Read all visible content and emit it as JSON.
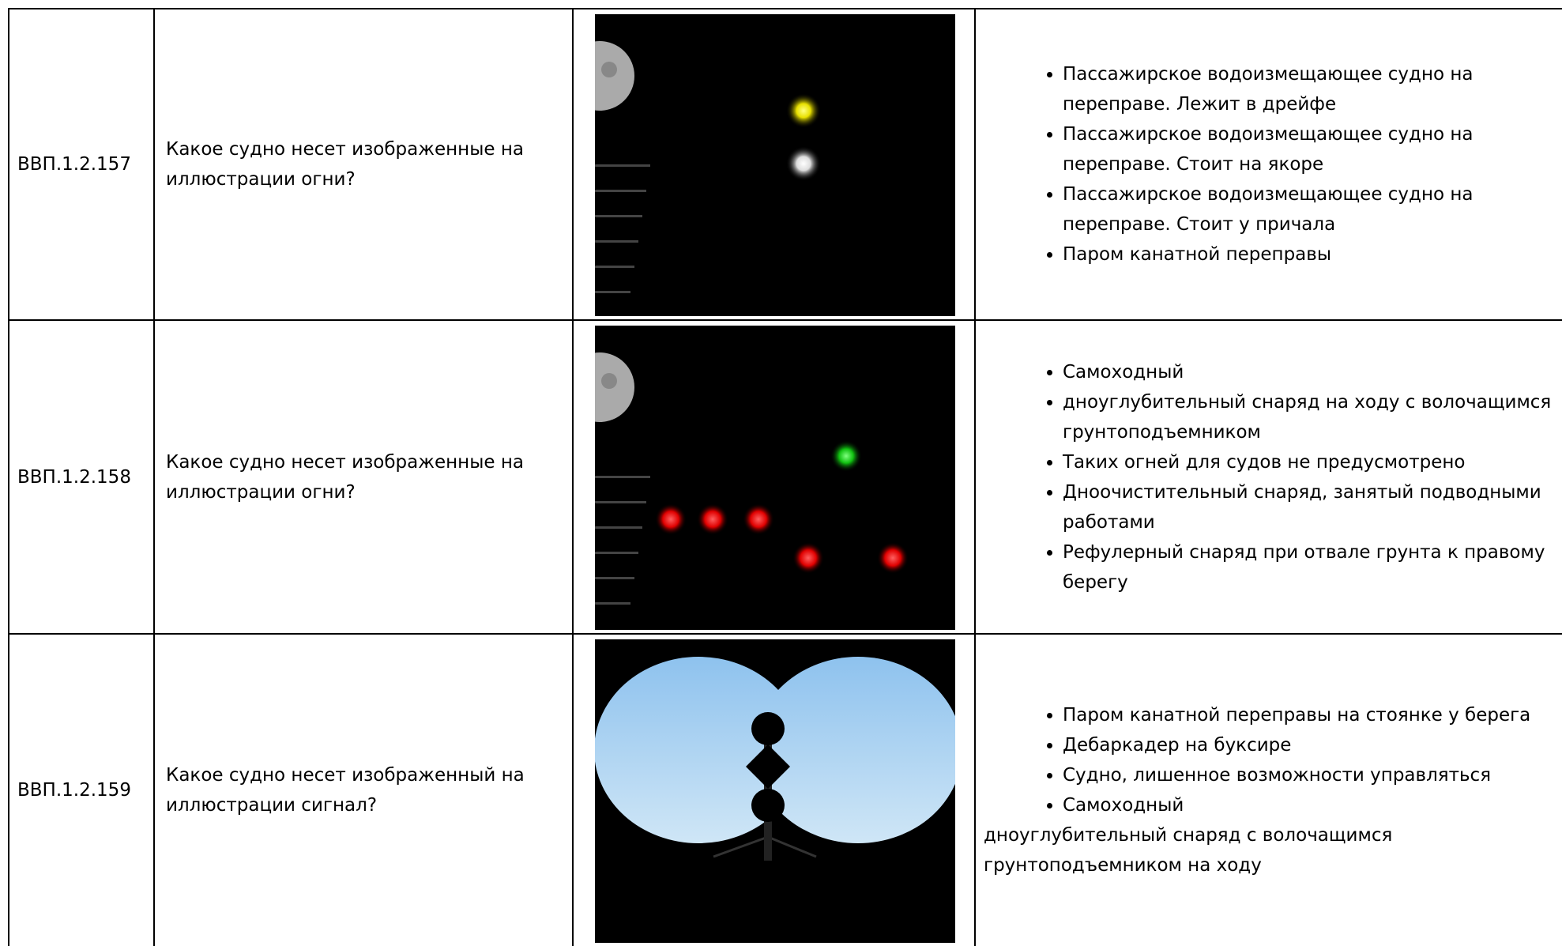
{
  "table": {
    "rows": [
      {
        "id": "ВВП.1.2.157",
        "question": "Какое судно несет изображенные на иллюстрации огни?",
        "answers": [
          "Пассажирское водоизмещающее судно на переправе. Лежит в дрейфе",
          "Пассажирское водоизмещающее судно на переправе. Стоит на якоре",
          "Пассажирское водоизмещающее судно на переправе. Стоит у причала",
          "Паром канатной переправы"
        ]
      },
      {
        "id": "ВВП.1.2.158",
        "question": "Какое судно несет изображенные на иллюстрации огни?",
        "answers": [
          "Самоходный",
          "дноуглубительный снаряд на ходу с волочащимся грунтоподъемником",
          "Таких огней для судов не предусмотрено",
          "Дноочистительный снаряд, занятый подводными работами",
          "Рефулерный снаряд при отвале грунта к правому берегу"
        ]
      },
      {
        "id": "ВВП.1.2.159",
        "question": "Какое судно несет изображенный на иллюстрации сигнал?",
        "answers": [
          "Паром канатной переправы на стоянке у берега",
          "Дебаркадер на буксире",
          "Судно, лишенное возможности управляться",
          "Самоходный"
        ],
        "note": "дноуглубительный снаряд с волочащимся грунтоподъемником на ходу"
      }
    ]
  }
}
